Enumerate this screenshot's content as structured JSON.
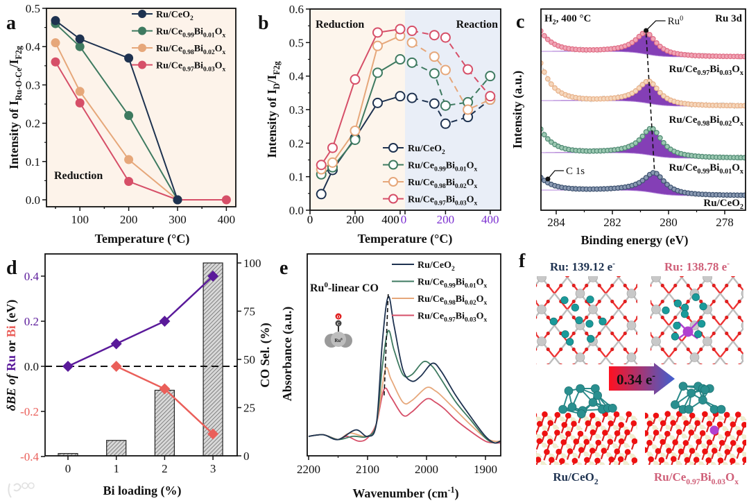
{
  "panel_letters": {
    "a": "a",
    "b": "b",
    "c": "c",
    "d": "d",
    "e": "e",
    "f": "f"
  },
  "watermark": "大数跨境",
  "chart_data": [
    {
      "panel": "a",
      "type": "line",
      "xlabel": "Temperature (°C)",
      "ylabel": "Intensity of I_{Ru-O-Ce}/I_{F2g}",
      "xlim": [
        31,
        419
      ],
      "ylim": [
        -0.018,
        0.5
      ],
      "xticks": [
        100,
        200,
        300,
        400
      ],
      "yticks": [
        0.0,
        0.1,
        0.2,
        0.3,
        0.4,
        0.5
      ],
      "annotation": "Reduction",
      "legend": "top-right",
      "background": "#fdf3ea",
      "series": [
        {
          "name": "Ru/CeO_{2}",
          "color": "#1e3250",
          "x": [
            50,
            100,
            200,
            300
          ],
          "y": [
            0.468,
            0.42,
            0.37,
            0.0
          ]
        },
        {
          "name": "Ru/Ce_{0.99}Bi_{0.01}O_{x}",
          "color": "#3e7a60",
          "x": [
            50,
            100,
            200,
            300
          ],
          "y": [
            0.46,
            0.4,
            0.22,
            0.0
          ]
        },
        {
          "name": "Ru/Ce_{0.98}Bi_{0.02}O_{x}",
          "color": "#e6a77a",
          "x": [
            50,
            100,
            200,
            300
          ],
          "y": [
            0.41,
            0.283,
            0.105,
            0.0
          ]
        },
        {
          "name": "Ru/Ce_{0.97}Bi_{0.03}O_{x}",
          "color": "#d64f68",
          "x": [
            50,
            100,
            200,
            300,
            400
          ],
          "y": [
            0.36,
            0.253,
            0.048,
            0.0,
            0.0
          ]
        }
      ]
    },
    {
      "panel": "b",
      "type": "line",
      "xlabel": "Temperature (°C)",
      "ylabel": "Intensity of I_{D}/I_{F2g}",
      "ylim": [
        0,
        0.6
      ],
      "yticks": [
        0.0,
        0.1,
        0.2,
        0.3,
        0.4,
        0.5,
        0.6
      ],
      "segments": [
        {
          "name": "Reduction",
          "xticks": [
            0,
            200,
            400
          ],
          "tick_color": "#000000",
          "background": "#fdf5ec"
        },
        {
          "name": "Reaction",
          "xticks": [
            0,
            200,
            400
          ],
          "tick_color": "#7b2fd0",
          "background": "#e9eef7"
        }
      ],
      "legend": "bottom-right",
      "series": [
        {
          "name": "Ru/CeO_{2}",
          "color": "#1e3250",
          "reduction": {
            "x": [
              50,
              100,
              200,
              300,
              400
            ],
            "y": [
              0.048,
              0.12,
              0.215,
              0.32,
              0.34
            ]
          },
          "reaction": {
            "x": [
              50,
              150,
              200,
              300,
              400
            ],
            "y": [
              0.335,
              0.318,
              0.258,
              0.278,
              0.33
            ]
          }
        },
        {
          "name": "Ru/Ce_{0.99}Bi_{0.01}O_{x}",
          "color": "#3e7a60",
          "reduction": {
            "x": [
              50,
              100,
              200,
              300,
              400
            ],
            "y": [
              0.107,
              0.128,
              0.21,
              0.41,
              0.45
            ]
          },
          "reaction": {
            "x": [
              50,
              150,
              200,
              300,
              400
            ],
            "y": [
              0.44,
              0.408,
              0.312,
              0.322,
              0.4
            ]
          }
        },
        {
          "name": "Ru/Ce_{0.98}Bi_{0.02}O_{x}",
          "color": "#e6a77a",
          "reduction": {
            "x": [
              50,
              100,
              200,
              300,
              400
            ],
            "y": [
              0.122,
              0.142,
              0.237,
              0.49,
              0.52
            ]
          },
          "reaction": {
            "x": [
              50,
              150,
              200,
              300,
              400
            ],
            "y": [
              0.5,
              0.458,
              0.418,
              0.3,
              0.33
            ]
          }
        },
        {
          "name": "Ru/Ce_{0.97}Bi_{0.03}O_{x}",
          "color": "#d64f68",
          "reduction": {
            "x": [
              50,
              100,
              200,
              300,
              400
            ],
            "y": [
              0.135,
              0.186,
              0.39,
              0.53,
              0.54
            ]
          },
          "reaction": {
            "x": [
              50,
              150,
              200,
              300,
              400
            ],
            "y": [
              0.535,
              0.522,
              0.515,
              0.42,
              0.34
            ]
          }
        }
      ]
    },
    {
      "panel": "c",
      "type": "line",
      "xlabel": "Binding energy (eV)",
      "ylabel": "Intensity (a.u.)",
      "xlim": [
        284.55,
        277.25
      ],
      "xticks": [
        284,
        282,
        280,
        278
      ],
      "condition": "H_{2}, 400 °C",
      "region": "Ru 3d",
      "annotations": [
        "Ru^{0}",
        "C 1s"
      ],
      "fit_color": "#7a2fb0",
      "series": [
        {
          "name": "Ru/CeO_{2}",
          "color": "#3d5270",
          "fill": "#8a9ab2",
          "peak_eV": 280.5
        },
        {
          "name": "Ru/Ce_{0.99}Bi_{0.01}O_{x}",
          "color": "#4e8a72",
          "fill": "#9cc8b2",
          "peak_eV": 280.6
        },
        {
          "name": "Ru/Ce_{0.98}Bi_{0.02}O_{x}",
          "color": "#e8b188",
          "fill": "#f5d7bd",
          "peak_eV": 280.7
        },
        {
          "name": "Ru/Ce_{0.97}Bi_{0.03}O_{x}",
          "color": "#e06c84",
          "fill": "#f0a6b6",
          "peak_eV": 280.8
        }
      ]
    },
    {
      "panel": "d",
      "type": "bar+line",
      "xlabel": "Bi loading (%)",
      "ylabel_parts": [
        "δBE of ",
        "Ru",
        " or ",
        "Bi",
        " (eV)"
      ],
      "ylabel_right": "CO Sel. (%)",
      "categories": [
        0,
        1,
        2,
        3
      ],
      "ylim": [
        -0.4,
        0.5
      ],
      "yticks": [
        -0.4,
        -0.2,
        0.0,
        0.2,
        0.4
      ],
      "ylim_right": [
        0,
        100
      ],
      "yticks_right": [
        0,
        25,
        50,
        75,
        100
      ],
      "bars": {
        "name": "CO Sel.",
        "values": [
          1.2,
          8,
          34,
          100
        ],
        "color": "#aaaaaa"
      },
      "series": [
        {
          "name": "Ru",
          "color": "#5a1a9a",
          "x": [
            0,
            1,
            2,
            3
          ],
          "y": [
            0.0,
            0.1,
            0.2,
            0.4
          ]
        },
        {
          "name": "Bi",
          "color": "#ea5f5a",
          "x": [
            1,
            2,
            3
          ],
          "y": [
            0.0,
            -0.1,
            -0.3
          ]
        }
      ],
      "reference_line": 0.0
    },
    {
      "panel": "e",
      "type": "line",
      "xlabel": "Wavenumber (cm^{-1})",
      "ylabel": "Absorbance (a.u.)",
      "xlim": [
        2200,
        1874
      ],
      "xticks": [
        2200,
        2100,
        2000,
        1900
      ],
      "annotation": "Ru^{0}-linear CO",
      "icon_labels": {
        "o": "O",
        "c": "C",
        "ru": "Ru^{0}"
      },
      "legend": "top-right",
      "series": [
        {
          "name": "Ru/CeO_{2}",
          "color": "#1e3250",
          "x": [
            2200,
            2175,
            2150,
            2120,
            2100,
            2085,
            2075,
            2065,
            2055,
            2040,
            2025,
            2010,
            1990,
            1975,
            1950,
            1925,
            1900,
            1885,
            1875
          ],
          "y": [
            0.12,
            0.13,
            0.1,
            0.16,
            0.12,
            0.2,
            0.7,
            0.98,
            0.8,
            0.53,
            0.46,
            0.49,
            0.57,
            0.52,
            0.37,
            0.24,
            0.12,
            0.08,
            0.09
          ]
        },
        {
          "name": "Ru/Ce_{0.99}Bi_{0.01}O_{x}",
          "color": "#3e7a60",
          "x": [
            2200,
            2175,
            2150,
            2125,
            2100,
            2085,
            2075,
            2065,
            2055,
            2040,
            2025,
            2005,
            1990,
            1975,
            1950,
            1925,
            1900,
            1885,
            1875
          ],
          "y": [
            0.12,
            0.13,
            0.1,
            0.12,
            0.12,
            0.2,
            0.55,
            0.77,
            0.65,
            0.5,
            0.5,
            0.58,
            0.55,
            0.47,
            0.33,
            0.22,
            0.11,
            0.08,
            0.09
          ]
        },
        {
          "name": "Ru/Ce_{0.98}Bi_{0.02}O_{x}",
          "color": "#e6a77a",
          "x": [
            2200,
            2175,
            2150,
            2130,
            2100,
            2085,
            2070,
            2060,
            2040,
            2025,
            2000,
            1985,
            1975,
            1950,
            1925,
            1900,
            1885,
            1875
          ],
          "y": [
            0.12,
            0.13,
            0.1,
            0.14,
            0.12,
            0.2,
            0.53,
            0.47,
            0.33,
            0.34,
            0.42,
            0.4,
            0.37,
            0.28,
            0.19,
            0.11,
            0.09,
            0.09
          ]
        },
        {
          "name": "Ru/Ce_{0.97}Bi_{0.03}O_{x}",
          "color": "#d64f68",
          "x": [
            2200,
            2175,
            2150,
            2135,
            2115,
            2100,
            2085,
            2072,
            2060,
            2040,
            2025,
            2000,
            1985,
            1970,
            1950,
            1925,
            1900,
            1885,
            1875
          ],
          "y": [
            0.12,
            0.13,
            0.1,
            0.12,
            0.09,
            0.11,
            0.2,
            0.41,
            0.36,
            0.25,
            0.27,
            0.35,
            0.33,
            0.29,
            0.22,
            0.15,
            0.09,
            0.08,
            0.08
          ]
        }
      ]
    }
  ],
  "panel_f": {
    "left_charge": "Ru: 139.12 e^{-}",
    "right_charge": "Ru: 138.78 e^{-}",
    "transfer": "0.34 e^{-}",
    "left_label": "Ru/CeO_{2}",
    "right_label": "Ru/Ce_{0.97}Bi_{0.03}O_{x}",
    "colors": {
      "left": "#1e3250",
      "right": "#cf5f78",
      "ru_atom": "#1a9a9a",
      "ce_atom": "#c8c8c8",
      "o_atom": "#e02020",
      "bi_atom": "#b040d0"
    }
  }
}
